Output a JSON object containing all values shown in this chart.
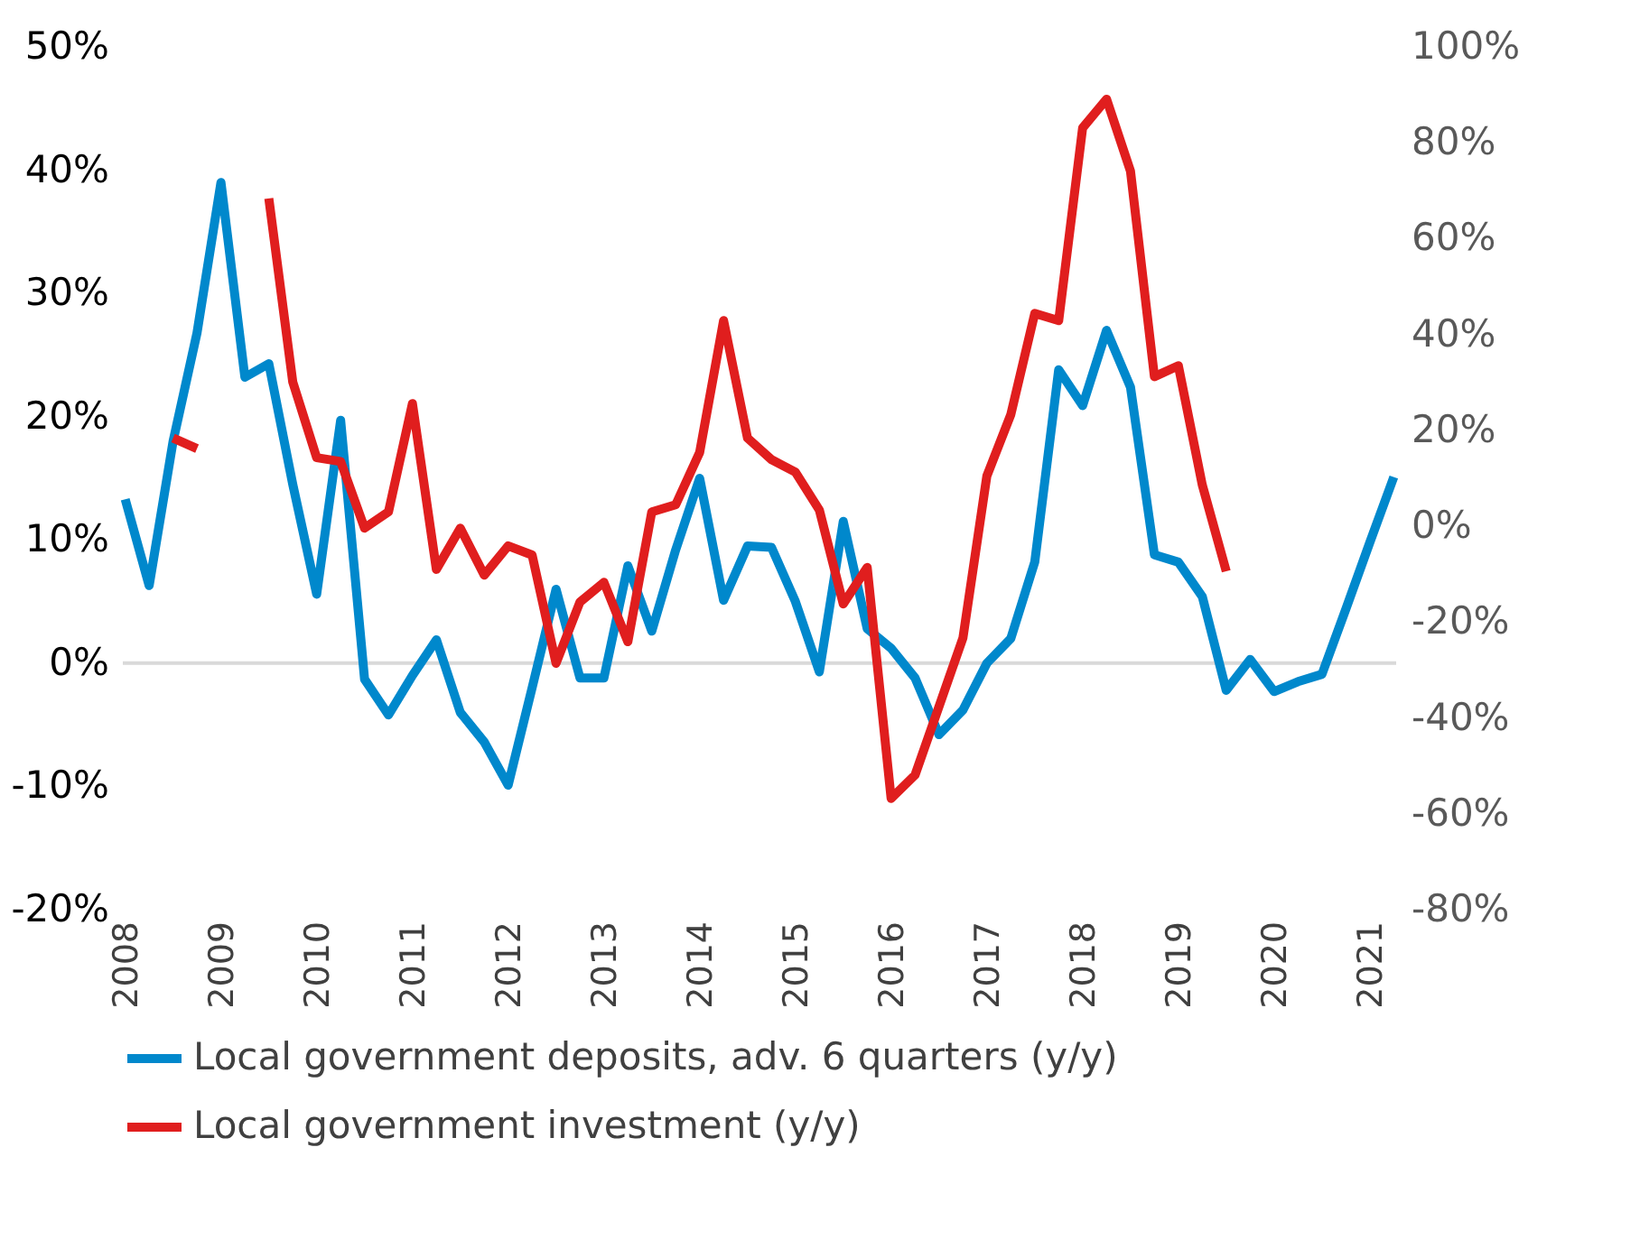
{
  "chart_data": {
    "type": "line",
    "categories": [
      "2008",
      null,
      null,
      null,
      "2009",
      null,
      null,
      null,
      "2010",
      null,
      null,
      null,
      "2011",
      null,
      null,
      null,
      "2012",
      null,
      null,
      null,
      "2013",
      null,
      null,
      null,
      "2014",
      null,
      null,
      null,
      "2015",
      null,
      null,
      null,
      "2016",
      null,
      null,
      null,
      "2017",
      null,
      null,
      null,
      "2018",
      null,
      null,
      null,
      "2019",
      null,
      null,
      null,
      "2020",
      null,
      null,
      null,
      "2021",
      null
    ],
    "series": [
      {
        "name": "Local government deposits, adv. 6 quarters (y/y)",
        "color": "#0088cc",
        "values": [
          13.3,
          6.3,
          18.0,
          26.8,
          39.0,
          23.2,
          24.3,
          14.5,
          5.6,
          19.7,
          -1.3,
          -4.2,
          -1.0,
          1.9,
          -4.0,
          -6.4,
          -9.9,
          -2.0,
          6.0,
          -1.2,
          -1.2,
          7.9,
          2.6,
          9.2,
          15.0,
          5.1,
          9.5,
          9.4,
          5.0,
          -0.7,
          11.5,
          2.8,
          1.2,
          -1.2,
          -5.8,
          -3.8,
          0.0,
          2.0,
          8.2,
          23.8,
          20.9,
          27.0,
          22.4,
          8.8,
          8.2,
          5.4,
          -2.2,
          0.3,
          -2.3,
          -1.5,
          -0.9,
          4.4,
          9.8,
          15.1
        ]
      },
      {
        "name": "Local government investment (y/y)",
        "color": "#e01e1e",
        "axis": "y2",
        "values": [
          null,
          null,
          18.4,
          16.2,
          null,
          null,
          68.4,
          30.1,
          14.3,
          13.5,
          -0.4,
          3.0,
          25.6,
          -9.0,
          -0.4,
          -10.2,
          -4.1,
          -6.0,
          -28.6,
          -15.8,
          -11.7,
          -24.1,
          3.0,
          4.5,
          15.4,
          42.9,
          18.4,
          13.9,
          11.3,
          3.4,
          -16.2,
          -8.6,
          -56.8,
          -51.9,
          -37.6,
          -23.3,
          10.5,
          23.3,
          44.4,
          42.9,
          83.1,
          89.1,
          74.1,
          31.2,
          33.5,
          8.6,
          -9.4,
          null,
          null,
          null,
          null,
          null,
          null,
          null
        ]
      }
    ],
    "ylim": [
      -20,
      50
    ],
    "yticks": [
      {
        "value": -20,
        "label": "-20%"
      },
      {
        "value": -10,
        "label": "-10%"
      },
      {
        "value": 0,
        "label": "0%"
      },
      {
        "value": 10,
        "label": "10%"
      },
      {
        "value": 20,
        "label": "20%"
      },
      {
        "value": 30,
        "label": "30%"
      },
      {
        "value": 40,
        "label": "40%"
      },
      {
        "value": 50,
        "label": "50%"
      }
    ],
    "y2lim": [
      -80,
      100
    ],
    "y2ticks": [
      {
        "value": -80,
        "label": "-80%"
      },
      {
        "value": -60,
        "label": "-60%"
      },
      {
        "value": -40,
        "label": "-40%"
      },
      {
        "value": -20,
        "label": "-20%"
      },
      {
        "value": 0,
        "label": "0%"
      },
      {
        "value": 20,
        "label": "20%"
      },
      {
        "value": 40,
        "label": "40%"
      },
      {
        "value": 60,
        "label": "60%"
      },
      {
        "value": 80,
        "label": "80%"
      },
      {
        "value": 100,
        "label": "100%"
      }
    ],
    "ref_lines": [
      {
        "axis": "y",
        "value": 0,
        "color": "#d9d9d9"
      }
    ],
    "legend": "bottom",
    "grid": false,
    "marker": "none",
    "line_style": "solid"
  }
}
